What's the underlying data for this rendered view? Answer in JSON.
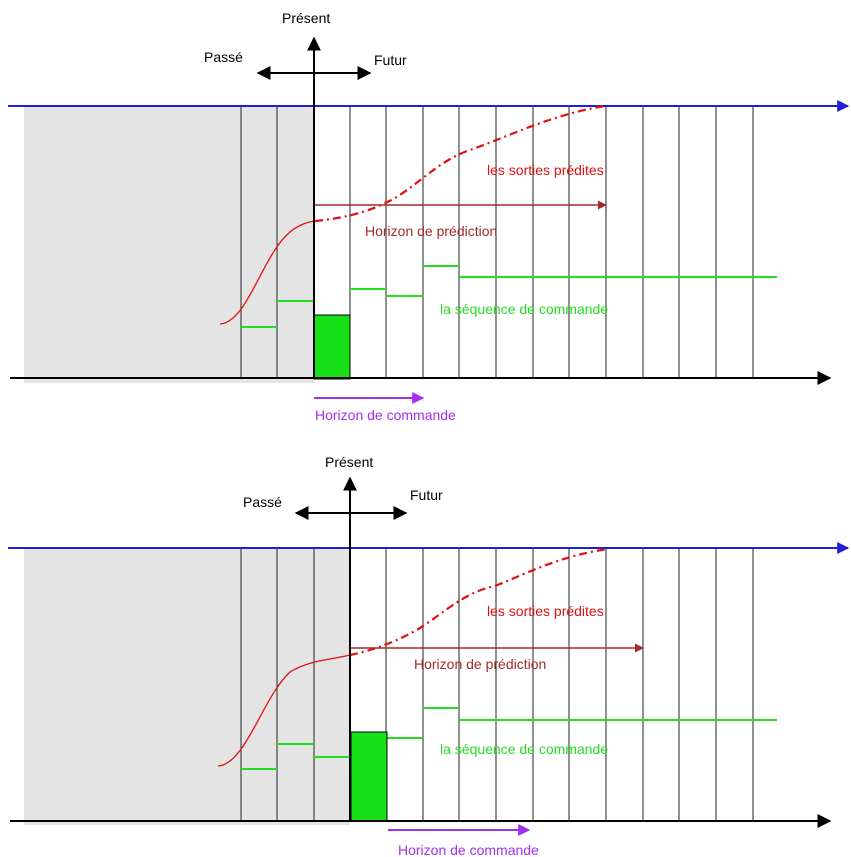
{
  "colors": {
    "reference": "#1f1fd6",
    "predicted": "#e01010",
    "prediction_horizon": "#a52a2a",
    "command": "#22dd22",
    "command_horizon": "#a22ef0",
    "past_shade": "#e4e4e4",
    "axis": "#000000",
    "grid": "#222222"
  },
  "panels": [
    {
      "present_label": "Présent",
      "past_label": "Passé",
      "future_label": "Futur",
      "predicted_outputs_label": "les sorties prédites",
      "prediction_horizon_label": "Horizon de prédiction",
      "command_sequence_label": "la séquence de commande",
      "command_horizon_label": "Horizon de commande"
    },
    {
      "present_label": "Présent",
      "past_label": "Passé",
      "future_label": "Futur",
      "predicted_outputs_label": "les sorties prédites",
      "prediction_horizon_label": "Horizon de prédiction",
      "command_sequence_label": "la séquence de commande",
      "command_horizon_label": "Horizon de commande"
    }
  ]
}
